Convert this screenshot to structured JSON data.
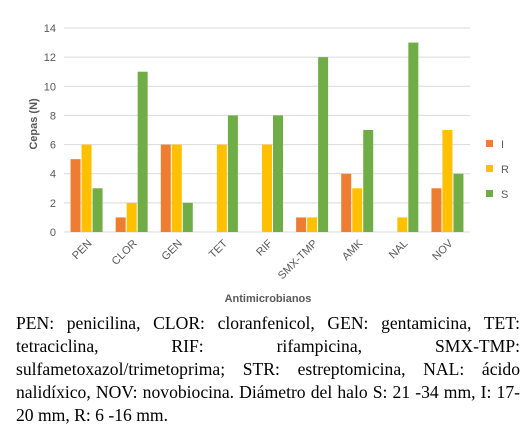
{
  "chart_data": {
    "type": "bar",
    "xlabel": "Antimicrobianos",
    "ylabel": "Cepas (N)",
    "ylim": [
      0,
      14
    ],
    "yticks": [
      0,
      2,
      4,
      6,
      8,
      10,
      12,
      14
    ],
    "grid": "horizontal",
    "legend_position": "right",
    "categories": [
      "PEN",
      "CLOR",
      "GEN",
      "TET",
      "RIF",
      "SMX-TMP",
      "AMK",
      "NAL",
      "NOV"
    ],
    "series": [
      {
        "name": "I",
        "color": "#ed7d31",
        "values": [
          5,
          1,
          6,
          0,
          0,
          1,
          4,
          0,
          3
        ]
      },
      {
        "name": "R",
        "color": "#ffc000",
        "values": [
          6,
          2,
          6,
          6,
          6,
          1,
          3,
          1,
          7
        ]
      },
      {
        "name": "S",
        "color": "#70ad47",
        "values": [
          3,
          11,
          2,
          8,
          8,
          12,
          7,
          13,
          4
        ]
      }
    ]
  },
  "caption": "PEN: penicilina, CLOR: cloranfenicol, GEN: gentamicina, TET: tetraciclina, RIF: rifampicina, SMX-TMP: sulfametoxazol/trimetoprima; STR: estreptomicina, NAL: ácido nalidíxico, NOV: novobiocina. Diámetro del halo S: 21 -34 mm, I: 17-20 mm, R: 6 -16 mm."
}
